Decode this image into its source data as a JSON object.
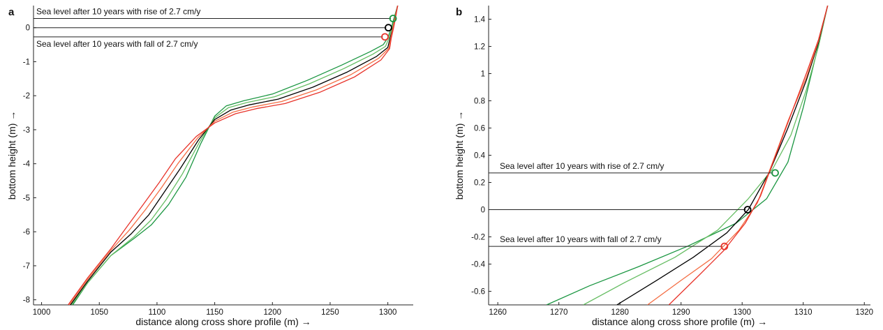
{
  "chart_data": [
    {
      "type": "line",
      "panel_label": "a",
      "xlabel": "distance along cross shore profile (m) →",
      "ylabel": "bottom height (m) →",
      "xlim": [
        993,
        1322
      ],
      "ylim": [
        -8.15,
        0.65
      ],
      "xticks": [
        1000,
        1050,
        1100,
        1150,
        1200,
        1250,
        1300
      ],
      "yticks": [
        0,
        -1,
        -2,
        -3,
        -4,
        -5,
        -6,
        -7,
        -8
      ],
      "grid": false,
      "annotations": [
        {
          "text": "Sea level after 10 years with rise of 2.7 cm/y",
          "y": 0.27
        },
        {
          "text": "Sea level after 10 years with fall of 2.7 cm/y",
          "y": -0.27
        }
      ],
      "reference_lines": [
        0.27,
        0,
        -0.27
      ],
      "markers": [
        {
          "x": 1304.5,
          "y": 0.27,
          "color": "#1a9641"
        },
        {
          "x": 1300.5,
          "y": 0,
          "color": "#000000"
        },
        {
          "x": 1297.5,
          "y": -0.27,
          "color": "#e8332a"
        }
      ],
      "series": [
        {
          "color": "#1a9641",
          "x": [
            1027,
            1040,
            1060,
            1080,
            1095,
            1110,
            1125,
            1138,
            1150,
            1160,
            1175,
            1200,
            1230,
            1260,
            1285,
            1296,
            1300,
            1303,
            1306,
            1308.5
          ],
          "y": [
            -8.15,
            -7.5,
            -6.7,
            -6.2,
            -5.8,
            -5.2,
            -4.4,
            -3.4,
            -2.6,
            -2.3,
            -2.15,
            -1.95,
            -1.55,
            -1.1,
            -0.7,
            -0.5,
            -0.3,
            0,
            0.35,
            0.65
          ]
        },
        {
          "color": "#66bd63",
          "x": [
            1026,
            1040,
            1060,
            1080,
            1095,
            1108,
            1122,
            1137,
            1150,
            1162,
            1178,
            1202,
            1232,
            1262,
            1287,
            1298,
            1301,
            1304,
            1306.5,
            1308.5
          ],
          "y": [
            -8.15,
            -7.5,
            -6.7,
            -6.15,
            -5.65,
            -5.05,
            -4.3,
            -3.35,
            -2.65,
            -2.35,
            -2.2,
            -2.03,
            -1.65,
            -1.2,
            -0.78,
            -0.55,
            -0.3,
            0,
            0.35,
            0.65
          ]
        },
        {
          "color": "#000000",
          "x": [
            1025,
            1040,
            1060,
            1078,
            1093,
            1106,
            1120,
            1136,
            1150,
            1164,
            1180,
            1205,
            1235,
            1265,
            1290,
            1300,
            1302,
            1304.5,
            1306.5,
            1308.5
          ],
          "y": [
            -8.15,
            -7.45,
            -6.6,
            -6.05,
            -5.5,
            -4.85,
            -4.15,
            -3.3,
            -2.7,
            -2.42,
            -2.27,
            -2.1,
            -1.75,
            -1.3,
            -0.85,
            -0.58,
            -0.3,
            0,
            0.35,
            0.65
          ]
        },
        {
          "color": "#f46d43",
          "x": [
            1024,
            1040,
            1060,
            1076,
            1090,
            1104,
            1118,
            1135,
            1150,
            1166,
            1183,
            1208,
            1238,
            1268,
            1292,
            1301,
            1302.5,
            1304.5,
            1306.5,
            1308.5
          ],
          "y": [
            -8.15,
            -7.4,
            -6.55,
            -5.95,
            -5.35,
            -4.7,
            -4.0,
            -3.25,
            -2.75,
            -2.48,
            -2.33,
            -2.17,
            -1.83,
            -1.38,
            -0.9,
            -0.6,
            -0.3,
            0,
            0.35,
            0.65
          ]
        },
        {
          "color": "#e8332a",
          "x": [
            1023,
            1040,
            1060,
            1074,
            1088,
            1102,
            1116,
            1134,
            1150,
            1168,
            1186,
            1211,
            1241,
            1271,
            1294,
            1301.5,
            1303,
            1305,
            1307,
            1308.5
          ],
          "y": [
            -8.15,
            -7.35,
            -6.5,
            -5.85,
            -5.2,
            -4.55,
            -3.85,
            -3.2,
            -2.8,
            -2.53,
            -2.38,
            -2.23,
            -1.9,
            -1.45,
            -0.95,
            -0.62,
            -0.3,
            0,
            0.35,
            0.65
          ]
        }
      ]
    },
    {
      "type": "line",
      "panel_label": "b",
      "xlabel": "distance along cross shore profile (m) →",
      "ylabel": "bottom height (m) →",
      "xlim": [
        1258.5,
        1321
      ],
      "ylim": [
        -0.7,
        1.5
      ],
      "xticks": [
        1260,
        1270,
        1280,
        1290,
        1300,
        1310,
        1320
      ],
      "yticks": [
        1.4,
        1.2,
        1,
        0.8,
        0.6,
        0.4,
        0.2,
        0,
        -0.2,
        -0.4,
        -0.6
      ],
      "grid": false,
      "annotations": [
        {
          "text": "Sea level after 10 years with rise of 2.7 cm/y",
          "y": 0.27
        },
        {
          "text": "Sea level after 10 years with fall of 2.7 cm/y",
          "y": -0.27
        }
      ],
      "reference_lines": [
        0.27,
        0,
        -0.27
      ],
      "markers": [
        {
          "x": 1305.4,
          "y": 0.27,
          "color": "#1a9641"
        },
        {
          "x": 1300.9,
          "y": 0,
          "color": "#000000"
        },
        {
          "x": 1297.1,
          "y": -0.27,
          "color": "#e8332a"
        }
      ],
      "series": [
        {
          "color": "#1a9641",
          "x": [
            1268,
            1275,
            1283,
            1291,
            1299,
            1304,
            1307.5,
            1310,
            1312,
            1314
          ],
          "y": [
            -0.7,
            -0.56,
            -0.42,
            -0.27,
            -0.1,
            0.08,
            0.35,
            0.75,
            1.12,
            1.5
          ]
        },
        {
          "color": "#66bd63",
          "x": [
            1274,
            1281,
            1289,
            1296,
            1301,
            1305,
            1308,
            1310.5,
            1312.5,
            1314
          ],
          "y": [
            -0.7,
            -0.53,
            -0.35,
            -0.15,
            0.08,
            0.3,
            0.55,
            0.88,
            1.2,
            1.5
          ]
        },
        {
          "color": "#000000",
          "x": [
            1279.5,
            1286,
            1292,
            1297.5,
            1301,
            1304.5,
            1307.5,
            1310.5,
            1312.5,
            1314
          ],
          "y": [
            -0.7,
            -0.52,
            -0.35,
            -0.17,
            0.0,
            0.28,
            0.6,
            0.95,
            1.23,
            1.5
          ]
        },
        {
          "color": "#f46d43",
          "x": [
            1284.5,
            1290,
            1295,
            1299.5,
            1302.5,
            1305,
            1307.5,
            1310.5,
            1312.5,
            1314
          ],
          "y": [
            -0.7,
            -0.52,
            -0.36,
            -0.15,
            0.05,
            0.35,
            0.65,
            0.97,
            1.24,
            1.5
          ]
        },
        {
          "color": "#e8332a",
          "x": [
            1288,
            1293,
            1297,
            1300.5,
            1303,
            1305.5,
            1308,
            1310.5,
            1312.5,
            1314
          ],
          "y": [
            -0.7,
            -0.48,
            -0.3,
            -0.1,
            0.1,
            0.4,
            0.7,
            1.0,
            1.25,
            1.5
          ]
        }
      ]
    }
  ]
}
